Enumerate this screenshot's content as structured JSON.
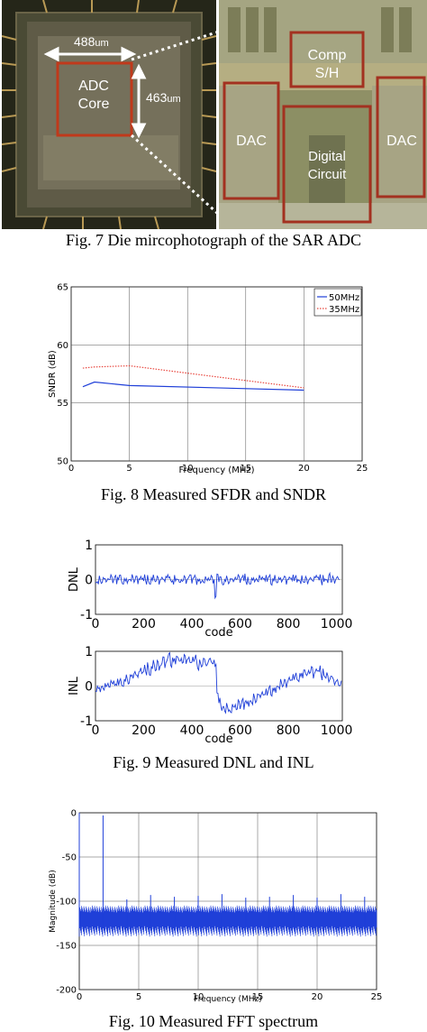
{
  "fig7": {
    "caption": "Fig. 7 Die mircophotograph of the SAR ADC",
    "width_label": "488",
    "width_unit": "um",
    "height_label": "463",
    "height_unit": "um",
    "core_line1": "ADC",
    "core_line2": "Core",
    "comp_line1": "Comp",
    "comp_line2": "S/H",
    "dac_left": "DAC",
    "dac_right": "DAC",
    "digital_line1": "Digital",
    "digital_line2": "Circuit"
  },
  "fig8": {
    "caption": "Fig. 8 Measured SFDR and SNDR",
    "chart_data": {
      "type": "line",
      "xlabel": "Frequency (MHz)",
      "ylabel": "SNDR (dB)",
      "xlim": [
        0,
        25
      ],
      "ylim": [
        50,
        65
      ],
      "xticks": [
        0,
        5,
        10,
        15,
        20,
        25
      ],
      "yticks": [
        50,
        55,
        60,
        65
      ],
      "xtick_labels": [
        "0",
        "5",
        "10",
        "15",
        "20",
        "25"
      ],
      "ytick_labels": [
        "50",
        "55",
        "60",
        "65"
      ],
      "grid": true,
      "legend_position": "top-right",
      "series": [
        {
          "name": "50MHz",
          "color": "#1f3fd8",
          "style": "solid",
          "x": [
            1,
            2,
            5,
            20
          ],
          "y": [
            56.4,
            56.8,
            56.5,
            56.1
          ]
        },
        {
          "name": "35MHz",
          "color": "#e8473f",
          "style": "dotted",
          "x": [
            1,
            2,
            5,
            20
          ],
          "y": [
            58.0,
            58.1,
            58.2,
            56.3
          ]
        }
      ]
    }
  },
  "fig9": {
    "caption": "Fig. 9 Measured DNL and INL",
    "chart_data": [
      {
        "type": "line",
        "ylabel": "DNL",
        "xlabel": "code",
        "xlim": [
          0,
          1024
        ],
        "ylim": [
          -1,
          1
        ],
        "xticks": [
          0,
          200,
          400,
          600,
          800,
          1000
        ],
        "yticks": [
          -1,
          0,
          1
        ],
        "xtick_labels": [
          "0",
          "200",
          "400",
          "600",
          "800",
          "1000"
        ],
        "ytick_labels": [
          "-1",
          "0",
          "1"
        ],
        "color": "#1f3fd8",
        "series": [
          {
            "x_step": 8,
            "values": [
              0.02,
              -0.04,
              0.05,
              -0.03,
              0.06,
              -0.05,
              0.03,
              -0.02,
              0.04,
              -0.06,
              0.05,
              -0.03,
              0.02,
              0.07,
              -0.04,
              0.03,
              -0.05,
              0.04,
              -0.02,
              0.05,
              -0.04,
              0.06,
              -0.03,
              0.02,
              -0.05,
              0.04,
              -0.03,
              0.05,
              -0.06,
              0.03,
              0.04,
              -0.02,
              0.06,
              -0.04,
              0.03,
              -0.05,
              0.02,
              0.05,
              -0.03,
              0.04,
              -0.05,
              0.03,
              0.06,
              -0.04,
              0.02,
              -0.03,
              0.05,
              -0.04,
              0.03,
              0.06,
              -0.05,
              0.02,
              -0.04,
              0.05,
              -0.03,
              0.04,
              -0.06,
              0.03,
              0.05,
              -0.02,
              0.04,
              -0.05,
              -0.55,
              0.06,
              -0.03,
              0.04,
              -0.05,
              0.02,
              0.05,
              -0.04,
              0.03,
              -0.06,
              0.05,
              -0.02,
              0.04,
              -0.05,
              0.03,
              0.06,
              -0.04,
              0.02,
              -0.05,
              0.04,
              -0.03,
              0.05,
              -0.06,
              0.03,
              0.04,
              -0.02,
              0.06,
              -0.04,
              0.03,
              -0.05,
              0.04,
              0.05,
              -0.03,
              0.04,
              -0.05,
              0.03,
              0.06,
              -0.04,
              0.02,
              -0.03,
              0.05,
              -0.04,
              0.03,
              0.06,
              -0.05,
              0.02,
              -0.04,
              0.05,
              -0.03,
              0.04,
              -0.06,
              0.03,
              0.05,
              -0.02,
              0.04,
              -0.05,
              0.03,
              0.06,
              -0.04,
              0.22,
              -0.05,
              0.04,
              -0.03,
              0.05,
              -0.06
            ]
          }
        ]
      },
      {
        "type": "line",
        "ylabel": "INL",
        "xlabel": "code",
        "xlim": [
          0,
          1024
        ],
        "ylim": [
          -1,
          1
        ],
        "xticks": [
          0,
          200,
          400,
          600,
          800,
          1000
        ],
        "yticks": [
          -1,
          0,
          1
        ],
        "xtick_labels": [
          "0",
          "200",
          "400",
          "600",
          "800",
          "1000"
        ],
        "ytick_labels": [
          "-1",
          "0",
          "1"
        ],
        "color": "#1f3fd8",
        "series": [
          {
            "x_step": 8,
            "values": [
              -0.05,
              0.02,
              -0.1,
              0.05,
              -0.08,
              0.0,
              0.08,
              -0.05,
              0.06,
              0.1,
              -0.02,
              0.12,
              0.04,
              0.15,
              0.08,
              0.2,
              0.25,
              0.12,
              0.3,
              0.22,
              0.4,
              0.28,
              0.35,
              0.45,
              0.3,
              0.5,
              0.42,
              0.6,
              0.38,
              0.55,
              0.65,
              0.48,
              0.7,
              0.55,
              0.62,
              0.78,
              0.6,
              0.72,
              0.85,
              0.65,
              0.8,
              0.7,
              0.9,
              0.75,
              0.82,
              0.68,
              0.85,
              0.72,
              0.78,
              0.6,
              0.75,
              0.68,
              0.8,
              0.55,
              0.72,
              0.65,
              0.82,
              0.6,
              0.7,
              0.78,
              0.62,
              0.7,
              0.55,
              -0.3,
              -0.45,
              -0.6,
              -0.5,
              -0.7,
              -0.55,
              -0.65,
              -0.75,
              -0.6,
              -0.55,
              -0.7,
              -0.5,
              -0.62,
              -0.45,
              -0.58,
              -0.4,
              -0.5,
              -0.35,
              -0.48,
              -0.3,
              -0.42,
              -0.25,
              -0.35,
              -0.2,
              -0.3,
              -0.15,
              -0.25,
              -0.1,
              -0.18,
              -0.05,
              -0.12,
              0.05,
              -0.05,
              0.1,
              0.02,
              0.15,
              0.05,
              0.2,
              0.1,
              0.25,
              0.18,
              0.3,
              0.22,
              0.35,
              0.28,
              0.5,
              0.32,
              0.45,
              0.38,
              0.5,
              0.3,
              0.42,
              0.35,
              0.48,
              0.28,
              0.4,
              0.3,
              0.35,
              0.22,
              0.3,
              0.18,
              0.1,
              0.15,
              -0.05,
              0.08
            ]
          }
        ]
      }
    ]
  },
  "fig10": {
    "caption": "Fig. 10 Measured FFT spectrum",
    "chart_data": {
      "type": "line",
      "xlabel": "Frequency (MHz)",
      "ylabel": "Magnitude (dB)",
      "xlim": [
        0,
        25
      ],
      "ylim": [
        -200,
        0
      ],
      "xticks": [
        0,
        5,
        10,
        15,
        20,
        25
      ],
      "yticks": [
        -200,
        -150,
        -100,
        -50,
        0
      ],
      "xtick_labels": [
        "0",
        "5",
        "10",
        "15",
        "20",
        "25"
      ],
      "ytick_labels": [
        "-200",
        "-150",
        "-100",
        "-50",
        "0"
      ],
      "grid": true,
      "color": "#1f3fd8",
      "noise_floor_db": [
        -140,
        -105
      ],
      "spurs": [
        {
          "f": 0.0,
          "db": 0
        },
        {
          "f": 2.0,
          "db": -3
        },
        {
          "f": 4.0,
          "db": -98
        },
        {
          "f": 6.0,
          "db": -93
        },
        {
          "f": 8.0,
          "db": -95
        },
        {
          "f": 10.0,
          "db": -94
        },
        {
          "f": 12.0,
          "db": -92
        },
        {
          "f": 14.0,
          "db": -96
        },
        {
          "f": 16.0,
          "db": -95
        },
        {
          "f": 18.0,
          "db": -93
        },
        {
          "f": 20.0,
          "db": -96
        },
        {
          "f": 22.0,
          "db": -92
        },
        {
          "f": 24.0,
          "db": -95
        }
      ]
    }
  }
}
